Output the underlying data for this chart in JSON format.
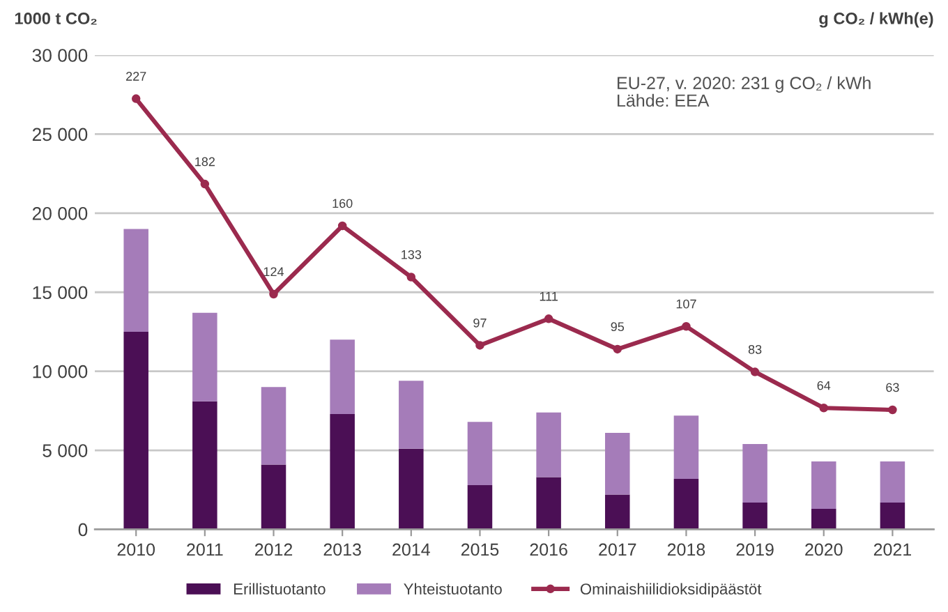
{
  "chart_data": {
    "type": "bar",
    "stacked": true,
    "categories": [
      "2010",
      "2011",
      "2012",
      "2013",
      "2014",
      "2015",
      "2016",
      "2017",
      "2018",
      "2019",
      "2020",
      "2021"
    ],
    "ylabel": "1000 t CO₂",
    "y2label": "g CO₂ / kWh(e)",
    "series": [
      {
        "name": "Erillistuotanto",
        "color": "#4b0f55",
        "values": [
          12500,
          8100,
          4100,
          7300,
          5100,
          2800,
          3300,
          2200,
          3200,
          1700,
          1300,
          1700
        ]
      },
      {
        "name": "Yhteistuotanto",
        "color": "#a57cb9",
        "values": [
          6500,
          5600,
          4900,
          4700,
          4300,
          4000,
          4100,
          3900,
          4000,
          3700,
          3000,
          2600
        ]
      },
      {
        "name": "Ominaishiilidioksidipäästöt",
        "type": "line",
        "axis": "y2",
        "color": "#9b2a4e",
        "marker": "circle",
        "values": [
          227,
          182,
          124,
          160,
          133,
          97,
          111,
          95,
          107,
          83,
          64,
          63
        ],
        "value_labels": [
          "227",
          "182",
          "124",
          "160",
          "133",
          "97",
          "111",
          "95",
          "107",
          "83",
          "64",
          "63"
        ]
      }
    ],
    "ylim": [
      0,
      30000
    ],
    "yticks": [
      0,
      {
        "value": 5000,
        "label": "5 000"
      },
      {
        "value": 10000,
        "label": "10 000"
      },
      {
        "value": 15000,
        "label": "15 000"
      },
      {
        "value": 20000,
        "label": "20 000"
      },
      {
        "value": 25000,
        "label": "25 000"
      },
      {
        "value": 30000,
        "label": "30 000"
      }
    ],
    "y2lim": [
      0,
      250
    ],
    "grid": "y",
    "legend": "bottom",
    "annotations": [
      "EU-27, v. 2020: 231 g CO₂ / kWh\nLähde: EEA"
    ]
  }
}
